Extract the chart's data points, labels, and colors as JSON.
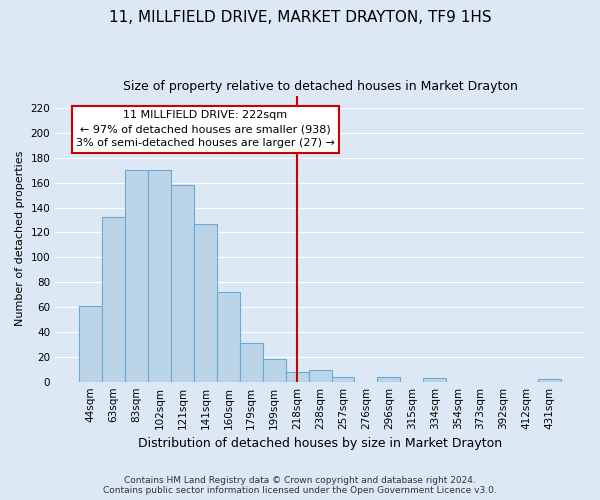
{
  "title": "11, MILLFIELD DRIVE, MARKET DRAYTON, TF9 1HS",
  "subtitle": "Size of property relative to detached houses in Market Drayton",
  "xlabel": "Distribution of detached houses by size in Market Drayton",
  "ylabel": "Number of detached properties",
  "bar_labels": [
    "44sqm",
    "63sqm",
    "83sqm",
    "102sqm",
    "121sqm",
    "141sqm",
    "160sqm",
    "179sqm",
    "199sqm",
    "218sqm",
    "238sqm",
    "257sqm",
    "276sqm",
    "296sqm",
    "315sqm",
    "334sqm",
    "354sqm",
    "373sqm",
    "392sqm",
    "412sqm",
    "431sqm"
  ],
  "bar_values": [
    61,
    132,
    170,
    170,
    158,
    127,
    72,
    31,
    18,
    8,
    9,
    4,
    0,
    4,
    0,
    3,
    0,
    0,
    0,
    0,
    2
  ],
  "bar_color": "#bcd4e8",
  "bar_edge_color": "#6aaad4",
  "vline_color": "#cc0000",
  "annotation_title": "11 MILLFIELD DRIVE: 222sqm",
  "annotation_line1": "← 97% of detached houses are smaller (938)",
  "annotation_line2": "3% of semi-detached houses are larger (27) →",
  "annotation_box_color": "#ffffff",
  "annotation_box_edge": "#cc0000",
  "ylim": [
    0,
    230
  ],
  "yticks": [
    0,
    20,
    40,
    60,
    80,
    100,
    120,
    140,
    160,
    180,
    200,
    220
  ],
  "footer_line1": "Contains HM Land Registry data © Crown copyright and database right 2024.",
  "footer_line2": "Contains public sector information licensed under the Open Government Licence v3.0.",
  "bg_color": "#dce8f4",
  "plot_bg_color": "#dce8f4",
  "grid_color": "#ffffff",
  "title_fontsize": 11,
  "subtitle_fontsize": 9,
  "xlabel_fontsize": 9,
  "ylabel_fontsize": 8,
  "tick_fontsize": 7.5,
  "footer_fontsize": 6.5
}
